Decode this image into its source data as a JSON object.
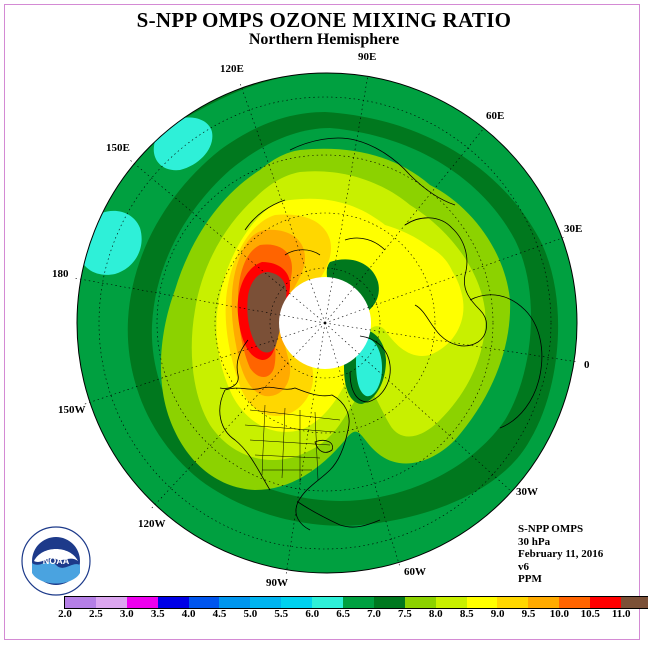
{
  "header": {
    "title": "S-NPP OMPS OZONE MIXING RATIO",
    "subtitle": "Northern Hemisphere"
  },
  "longitude_labels": [
    "90E",
    "60E",
    "30E",
    "0",
    "30W",
    "60W",
    "90W",
    "120W",
    "150W",
    "180",
    "150E",
    "120E"
  ],
  "info": {
    "instrument": "S-NPP OMPS",
    "level": "30 hPa",
    "date": "February 11, 2016",
    "version": "v6",
    "units": "PPM"
  },
  "logo": {
    "name": "NOAA",
    "ring_text": "NATIONAL OCEANIC AND ATMOSPHERIC ADMINISTRATION · U.S. DEPARTMENT OF COMMERCE"
  },
  "colorbar": {
    "ticks": [
      "2.0",
      "2.5",
      "3.0",
      "3.5",
      "4.0",
      "4.5",
      "5.0",
      "5.5",
      "6.0",
      "6.5",
      "7.0",
      "7.5",
      "8.0",
      "8.5",
      "9.0",
      "9.5",
      "10.0",
      "10.5",
      "11.0"
    ],
    "colors": [
      "#b57fe6",
      "#dca6f0",
      "#ee00ee",
      "#0000e6",
      "#0055ee",
      "#0096ee",
      "#00b4f0",
      "#00d2f0",
      "#2ef0d8",
      "#00a040",
      "#00781e",
      "#8cd200",
      "#c8f000",
      "#ffff00",
      "#ffd700",
      "#ffaa00",
      "#ff6400",
      "#ff0000",
      "#7b5037"
    ]
  },
  "map": {
    "colors": {
      "ocean_band": "#00781e",
      "green": "#00a040",
      "light_green": "#8cd200",
      "yellow_green": "#c8f000",
      "yellow": "#ffff00",
      "gold": "#ffd700",
      "orange": "#ffaa00",
      "dark_orange": "#ff6400",
      "red": "#ff0000",
      "brown": "#7b5037",
      "cyan": "#2ef0d8"
    }
  }
}
